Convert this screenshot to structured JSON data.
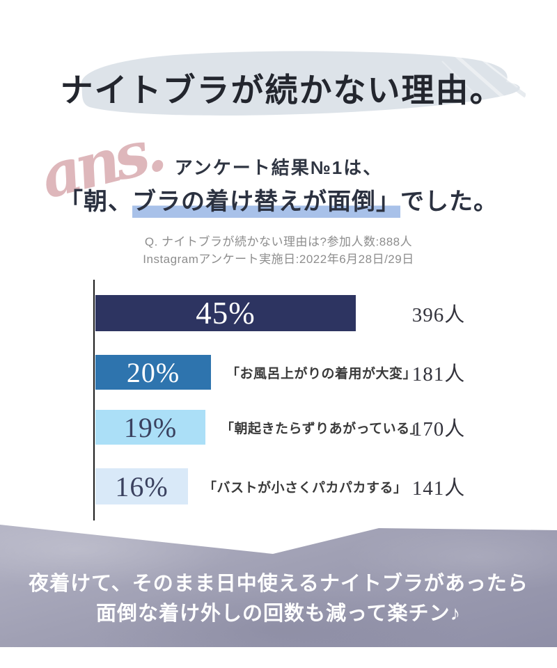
{
  "colors": {
    "brush": "#dde3e9",
    "highlight": "#a8c1e9",
    "script_pink": "#d9abb0",
    "axis": "#1b1b1b",
    "note_gray": "#8d8d8d",
    "band_top": "#b3b3c4",
    "band_bottom": "#8f8fa7"
  },
  "title": {
    "text": "ナイトブラが続かない理由。"
  },
  "decor": {
    "script": "ans."
  },
  "subtitle": {
    "text": "アンケート結果№1は、"
  },
  "headline": {
    "prefix": "「朝、",
    "highlight": "ブラの着け替えが面倒」",
    "suffix": "でした。"
  },
  "survey_note": {
    "line1": "Q. ナイトブラが続かない理由は?参加人数:888人",
    "line2": "Instagramアンケート実施日:2022年6月28日/29日"
  },
  "chart_data": {
    "type": "bar",
    "orientation": "horizontal",
    "unit": "%",
    "question": "ナイトブラが続かない理由は?",
    "participants_total": 888,
    "xlim": [
      0,
      48
    ],
    "grid": false,
    "legend": "none",
    "categories": [
      "朝、ブラの着け替えが面倒",
      "お風呂上がりの着用が大変",
      "朝起きたらずりあがっている",
      "バストが小さくパカパカする"
    ],
    "values": [
      45,
      20,
      19,
      16
    ],
    "counts": [
      396,
      181,
      170,
      141
    ],
    "rows": [
      {
        "value": 45,
        "percent_label": "45%",
        "count_label": "396人",
        "quote_label": "",
        "bar_color": "#2d3461",
        "percent_color": "#ffffff"
      },
      {
        "value": 20,
        "percent_label": "20%",
        "count_label": "181人",
        "quote_label": "「お風呂上がりの着用が大変」",
        "bar_color": "#2e74ae",
        "percent_color": "#ffffff"
      },
      {
        "value": 19,
        "percent_label": "19%",
        "count_label": "170人",
        "quote_label": "「朝起きたらずりあがっている」",
        "bar_color": "#abdff7",
        "percent_color": "#3a415f"
      },
      {
        "value": 16,
        "percent_label": "16%",
        "count_label": "141人",
        "quote_label": "「バストが小さくパカパカする」",
        "bar_color": "#d9e9f8",
        "percent_color": "#3a415f"
      }
    ]
  },
  "footer": {
    "line1": "夜着けて、そのまま日中使えるナイトブラがあったら",
    "line2": "面倒な着け外しの回数も減って楽チン♪"
  }
}
